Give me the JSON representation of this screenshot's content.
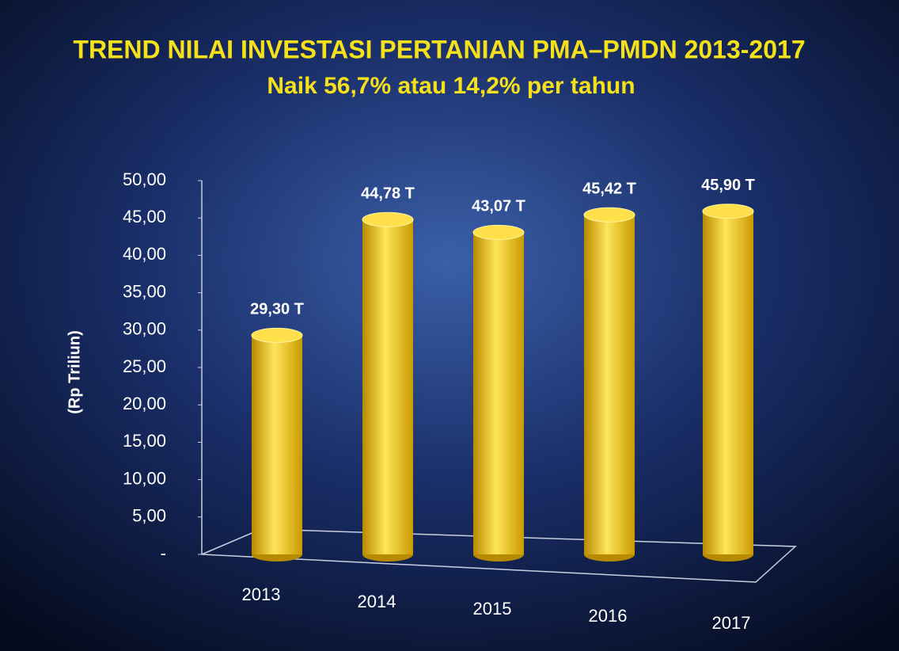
{
  "chart_data": {
    "type": "cylinder-bar",
    "title": "TREND NILAI INVESTASI PERTANIAN PMA–PMDN 2013-2017",
    "subtitle": "Naik 56,7% atau 14,2% per tahun",
    "y_axis_label": "(Rp Triliun)",
    "categories": [
      "2013",
      "2014",
      "2015",
      "2016",
      "2017"
    ],
    "values": [
      29.3,
      44.78,
      43.07,
      45.42,
      45.9
    ],
    "value_labels": [
      "29,30 T",
      "44,78 T",
      "43,07 T",
      "45,42 T",
      "45,90 T"
    ],
    "color": "#f2c200",
    "ylim": [
      0,
      50
    ],
    "yticks": [
      {
        "value": 0,
        "label": "-"
      },
      {
        "value": 5,
        "label": "5,00"
      },
      {
        "value": 10,
        "label": "10,00"
      },
      {
        "value": 15,
        "label": "15,00"
      },
      {
        "value": 20,
        "label": "20,00"
      },
      {
        "value": 25,
        "label": "25,00"
      },
      {
        "value": 30,
        "label": "30,00"
      },
      {
        "value": 35,
        "label": "35,00"
      },
      {
        "value": 40,
        "label": "40,00"
      },
      {
        "value": 45,
        "label": "45,00"
      },
      {
        "value": 50,
        "label": "50,00"
      }
    ]
  }
}
